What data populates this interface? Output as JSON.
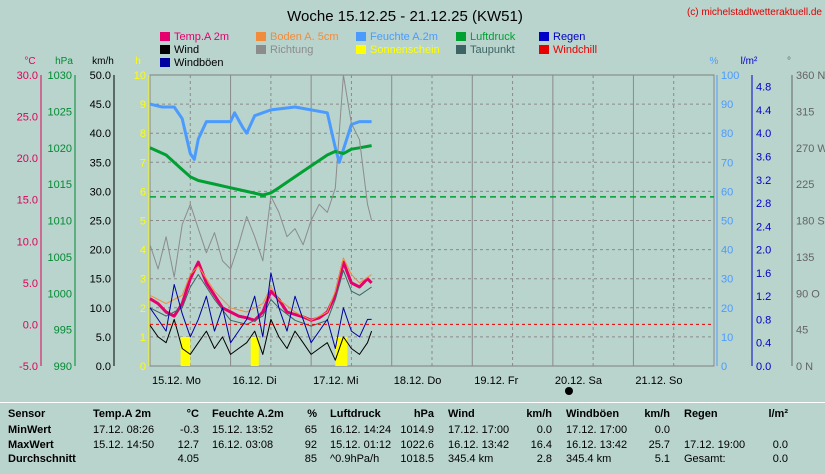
{
  "chart_data": {
    "type": "line",
    "title": "Woche 15.12.25 - 21.12.25 (KW51)",
    "credit": "(c) michelstadtwetteraktuell.de",
    "x_ticks": [
      "15.12. Mo",
      "16.12. Di",
      "17.12. Mi",
      "18.12. Do",
      "19.12. Fr",
      "20.12. Sa",
      "21.12. So"
    ],
    "x_range_days": [
      15,
      22
    ],
    "axes": [
      {
        "unit": "°C",
        "color": "#e0005a",
        "min": -5,
        "max": 30,
        "ticks": [
          "30.0",
          "25.0",
          "20.0",
          "15.0",
          "10.0",
          "5.0",
          "0.0",
          "-5.0"
        ]
      },
      {
        "unit": "hPa",
        "color": "#008c32",
        "min": 990,
        "max": 1030,
        "ticks": [
          "1030",
          "1025",
          "1020",
          "1015",
          "1010",
          "1005",
          "1000",
          "995",
          "990"
        ]
      },
      {
        "unit": "km/h",
        "color": "#000000",
        "min": 0,
        "max": 50,
        "ticks": [
          "50.0",
          "45.0",
          "40.0",
          "35.0",
          "30.0",
          "25.0",
          "20.0",
          "15.0",
          "10.0",
          "5.0",
          "0.0"
        ]
      },
      {
        "unit": "h",
        "color": "#ffff00",
        "min": 0,
        "max": 10,
        "ticks": [
          "10",
          "9",
          "8",
          "7",
          "6",
          "5",
          "4",
          "3",
          "2",
          "1",
          "0"
        ]
      },
      {
        "unit": "%",
        "color": "#4b9bff",
        "min": 0,
        "max": 100,
        "ticks": [
          "100",
          "90",
          "80",
          "70",
          "60",
          "50",
          "40",
          "30",
          "20",
          "10",
          "0"
        ]
      },
      {
        "unit": "l/m²",
        "color": "#0000c8",
        "min": 0,
        "max": 5,
        "ticks": [
          "4.8",
          "4.4",
          "4.0",
          "3.6",
          "3.2",
          "2.8",
          "2.4",
          "2.0",
          "1.6",
          "1.2",
          "0.8",
          "0.4",
          "0.0"
        ]
      },
      {
        "unit": "°",
        "color": "#646464",
        "min": 0,
        "max": 360,
        "ticks": [
          "360 N",
          "315",
          "270 W",
          "225",
          "180 S",
          "135",
          "90 O",
          "45",
          "0 N"
        ]
      }
    ],
    "legend": [
      {
        "name": "Temp.A 2m",
        "color": "#e6006e"
      },
      {
        "name": "Boden A. 5cm",
        "color": "#f08c3c"
      },
      {
        "name": "Feuchte A.2m",
        "color": "#4b9bff"
      },
      {
        "name": "Luftdruck",
        "color": "#00a032"
      },
      {
        "name": "Regen",
        "color": "#0000c8"
      },
      {
        "name": "Wind",
        "color": "#000000"
      },
      {
        "name": "Richtung",
        "color": "#8c8c8c"
      },
      {
        "name": "Sonnenschein",
        "color": "#ffff00"
      },
      {
        "name": "Taupunkt",
        "color": "#3c6464"
      },
      {
        "name": "Windchill",
        "color": "#e60000"
      },
      {
        "name": "Windböen",
        "color": "#0000a0"
      }
    ],
    "series": [
      {
        "name": "Temp.A 2m",
        "color": "#e6006e",
        "width": 3,
        "x": [
          15.0,
          15.1,
          15.2,
          15.3,
          15.4,
          15.5,
          15.6,
          15.7,
          15.8,
          15.9,
          16.0,
          16.1,
          16.2,
          16.3,
          16.4,
          16.5,
          16.6,
          16.7,
          16.8,
          16.9,
          17.0,
          17.1,
          17.2,
          17.3,
          17.4,
          17.5,
          17.6,
          17.7,
          17.75
        ],
        "y": [
          3.1,
          2.5,
          1.5,
          1.0,
          2.5,
          5.5,
          7.5,
          5.0,
          3.5,
          2.0,
          1.5,
          1.0,
          0.8,
          0.5,
          1.5,
          4.0,
          3.0,
          1.5,
          1.2,
          0.9,
          0.5,
          0.8,
          1.5,
          3.5,
          7.5,
          5.0,
          4.5,
          5.5,
          5.0
        ]
      },
      {
        "name": "Boden A. 5cm",
        "color": "#f08c3c",
        "width": 1,
        "x": [
          15.0,
          15.2,
          15.4,
          15.5,
          15.6,
          15.8,
          16.0,
          16.2,
          16.4,
          16.5,
          16.6,
          16.8,
          17.0,
          17.2,
          17.3,
          17.4,
          17.5,
          17.6,
          17.75
        ],
        "y": [
          3.5,
          2.5,
          3.5,
          6.0,
          7.0,
          4.0,
          2.0,
          1.5,
          2.5,
          4.5,
          3.0,
          1.5,
          0.5,
          1.5,
          4.0,
          8.0,
          6.0,
          5.0,
          6.0
        ]
      },
      {
        "name": "Taupunkt",
        "color": "#3c6464",
        "width": 1,
        "x": [
          15.0,
          15.2,
          15.4,
          15.5,
          15.6,
          15.8,
          16.0,
          16.2,
          16.4,
          16.5,
          16.6,
          16.8,
          17.0,
          17.2,
          17.3,
          17.4,
          17.5,
          17.6,
          17.75
        ],
        "y": [
          2.0,
          1.0,
          2.0,
          4.5,
          6.0,
          3.0,
          0.5,
          0.0,
          1.0,
          3.0,
          2.0,
          0.5,
          -0.2,
          0.5,
          3.0,
          6.5,
          4.0,
          3.5,
          4.5
        ]
      },
      {
        "name": "Feuchte A.2m",
        "color": "#4b9bff",
        "width": 3,
        "x": [
          15.0,
          15.15,
          15.3,
          15.4,
          15.5,
          15.55,
          15.6,
          15.7,
          15.8,
          16.0,
          16.05,
          16.15,
          16.2,
          16.3,
          16.5,
          16.8,
          17.0,
          17.2,
          17.3,
          17.35,
          17.5,
          17.6,
          17.75
        ],
        "y": [
          90,
          89,
          89,
          85,
          73,
          71,
          78,
          84,
          84,
          84,
          87,
          82,
          80,
          86,
          88,
          89,
          88,
          87,
          75,
          70,
          83,
          84,
          84
        ]
      },
      {
        "name": "Luftdruck",
        "color": "#00a032",
        "width": 3,
        "x": [
          15.0,
          15.2,
          15.4,
          15.5,
          15.6,
          15.8,
          16.0,
          16.2,
          16.4,
          16.5,
          16.6,
          16.8,
          17.0,
          17.2,
          17.3,
          17.4,
          17.5,
          17.6,
          17.75
        ],
        "y": [
          1020.0,
          1019.0,
          1017.0,
          1016.0,
          1015.5,
          1015.0,
          1014.5,
          1014.0,
          1013.5,
          1013.8,
          1014.5,
          1016.0,
          1017.5,
          1019.0,
          1019.5,
          1019.2,
          1019.8,
          1020.0,
          1020.3
        ]
      },
      {
        "name": "Richtung",
        "color": "#8c8c8c",
        "width": 1,
        "x": [
          15.0,
          15.1,
          15.2,
          15.3,
          15.4,
          15.5,
          15.6,
          15.7,
          15.8,
          15.9,
          16.0,
          16.1,
          16.2,
          16.3,
          16.4,
          16.5,
          16.6,
          16.7,
          16.8,
          16.9,
          17.0,
          17.1,
          17.2,
          17.3,
          17.4,
          17.45,
          17.5,
          17.6,
          17.7,
          17.75
        ],
        "y": [
          150,
          120,
          160,
          110,
          175,
          200,
          170,
          140,
          165,
          130,
          120,
          150,
          185,
          160,
          130,
          210,
          190,
          160,
          170,
          150,
          180,
          200,
          190,
          220,
          360,
          330,
          300,
          280,
          200,
          180
        ]
      },
      {
        "name": "Wind",
        "color": "#000000",
        "width": 1,
        "x": [
          15.0,
          15.1,
          15.2,
          15.3,
          15.4,
          15.5,
          15.6,
          15.7,
          15.8,
          15.9,
          16.0,
          16.1,
          16.2,
          16.3,
          16.4,
          16.5,
          16.6,
          16.7,
          16.8,
          16.9,
          17.0,
          17.1,
          17.2,
          17.3,
          17.4,
          17.5,
          17.6,
          17.7,
          17.75
        ],
        "y": [
          7,
          5,
          4,
          8,
          3,
          2,
          4,
          6,
          3,
          5,
          2,
          3,
          4,
          6,
          2,
          8,
          5,
          3,
          6,
          4,
          2,
          3,
          4,
          1,
          5,
          3,
          2,
          4,
          6
        ]
      },
      {
        "name": "Windböen",
        "color": "#0000a0",
        "width": 1,
        "x": [
          15.0,
          15.1,
          15.2,
          15.3,
          15.4,
          15.5,
          15.6,
          15.7,
          15.8,
          15.9,
          16.0,
          16.1,
          16.2,
          16.3,
          16.4,
          16.5,
          16.6,
          16.7,
          16.8,
          16.9,
          17.0,
          17.1,
          17.2,
          17.3,
          17.4,
          17.5,
          17.6,
          17.7,
          17.75
        ],
        "y": [
          10,
          8,
          6,
          14,
          9,
          5,
          8,
          12,
          6,
          10,
          4,
          6,
          8,
          12,
          5,
          16,
          10,
          6,
          12,
          8,
          4,
          6,
          8,
          3,
          10,
          6,
          5,
          8,
          8
        ]
      },
      {
        "name": "Windchill",
        "color": "#e60000",
        "width": 1,
        "dashed": true,
        "x": [
          15.0,
          22.0
        ],
        "y": [
          0,
          0
        ]
      }
    ],
    "pressure_reference": {
      "value": 1013.25,
      "color": "#00a032"
    },
    "sunshine": [
      {
        "x": [
          15.38,
          15.5
        ],
        "y": 1.0
      },
      {
        "x": [
          16.25,
          16.35
        ],
        "y": 1.0
      },
      {
        "x": [
          17.3,
          17.45
        ],
        "y": 1.0
      }
    ]
  },
  "stats": {
    "headers": [
      "Sensor",
      "Temp.A 2m",
      "°C",
      "Feuchte A.2m",
      "%",
      "Luftdruck",
      "hPa",
      "Wind",
      "km/h",
      "Windböen",
      "km/h",
      "Regen",
      "l/m²"
    ],
    "rows": [
      {
        "label": "MinWert",
        "temp": "17.12.  08:26",
        "temp_v": "-0.3",
        "hum": "15.12.  13:52",
        "hum_v": "65",
        "press": "16.12.  14:24",
        "press_v": "1014.9",
        "wind": "17.12.  17:00",
        "wind_v": "0.0",
        "gust": "17.12.  17:00",
        "gust_v": "0.0",
        "rain": "",
        "rain_v": ""
      },
      {
        "label": "MaxWert",
        "temp": "15.12.  14:50",
        "temp_v": "12.7",
        "hum": "16.12.  03:08",
        "hum_v": "92",
        "press": "15.12.  01:12",
        "press_v": "1022.6",
        "wind": "16.12.  13:42",
        "wind_v": "16.4",
        "gust": "16.12.  13:42",
        "gust_v": "25.7",
        "rain": "17.12.  19:00",
        "rain_v": "0.0"
      },
      {
        "label": "Durchschnitt",
        "temp": "",
        "temp_v": "4.05",
        "hum": "",
        "hum_v": "85",
        "press": "^0.9hPa/h",
        "press_v": "1018.5",
        "wind": "345.4 km",
        "wind_v": "2.8",
        "gust": "345.4 km",
        "gust_v": "5.1",
        "rain": "Gesamt:",
        "rain_v": "0.0"
      }
    ]
  }
}
